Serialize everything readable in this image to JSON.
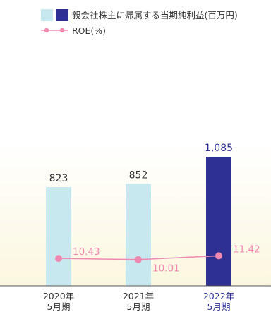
{
  "chart_data": {
    "type": "bar",
    "categories": [
      {
        "year": "2020年",
        "period": "5月期"
      },
      {
        "year": "2021年",
        "period": "5月期"
      },
      {
        "year": "2022年",
        "period": "5月期"
      }
    ],
    "series": [
      {
        "name": "親会社株主に帰属する当期純利益(百万円)",
        "type": "bar",
        "values": [
          823,
          852,
          1085
        ],
        "value_labels": [
          "823",
          "852",
          "1,085"
        ],
        "colors": [
          "#c8e8f0",
          "#c8e8f0",
          "#2e3192"
        ]
      },
      {
        "name": "ROE(%)",
        "type": "line",
        "values": [
          10.43,
          10.01,
          11.42
        ],
        "value_labels": [
          "10.43",
          "10.01",
          "11.42"
        ],
        "color": "#ee88b0"
      }
    ],
    "legend": {
      "position": "top-right",
      "items": [
        {
          "label": "親会社株主に帰属する当期純利益(百万円)",
          "swatch_colors": [
            "#c8e8f0",
            "#2e3192"
          ]
        },
        {
          "label": "ROE(%)",
          "color": "#ee88b0"
        }
      ]
    },
    "bar_ylim": [
      0,
      1250
    ],
    "roe_ylim": [
      0,
      55
    ],
    "label_colors": {
      "default": "#333333",
      "highlight": "#2e3192"
    },
    "background_gradient": [
      "#ffffff",
      "#fbf7df"
    ],
    "grid": false
  }
}
